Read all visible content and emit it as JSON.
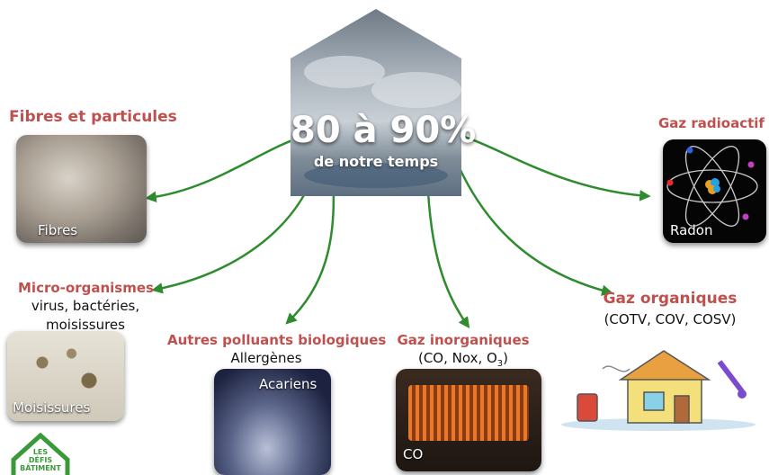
{
  "center": {
    "percent": "80 à 90%",
    "subtitle": "de notre temps"
  },
  "nodes": {
    "fibres": {
      "title": "Fibres et particules",
      "image_label": "Fibres"
    },
    "micro": {
      "title": "Micro-organismes",
      "line1": "virus, bactéries,",
      "line2": "moisissures",
      "image_label": "Moisissures"
    },
    "bio": {
      "title": "Autres polluants biologiques",
      "subtitle": "Allergènes",
      "image_label": "Acariens"
    },
    "inorg": {
      "title": "Gaz inorganiques",
      "subtitle_prefix": "(CO, Nox, O",
      "subtitle_sub": "3",
      "subtitle_suffix": ")",
      "image_label": "CO"
    },
    "org": {
      "title": "Gaz organiques",
      "subtitle": "(COTV, COV, COSV)"
    },
    "radio": {
      "title": "Gaz radioactif",
      "image_label": "Radon"
    }
  },
  "logo": {
    "line1": "LES",
    "line2": "DÉFIS",
    "line3": "BÂTIMENT"
  },
  "colors": {
    "title_red": "#c0504d",
    "arrow_green": "#2e8b2e",
    "logo_green": "#3a9a3a"
  }
}
